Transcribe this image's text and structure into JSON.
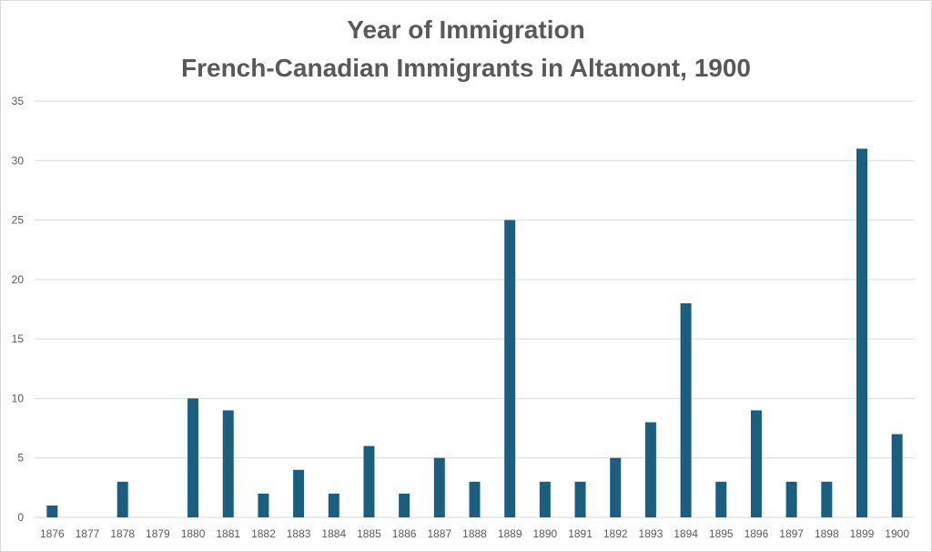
{
  "chart_data": {
    "type": "bar",
    "title": "Year of Immigration",
    "subtitle": "French-Canadian Immigrants in Altamont, 1900",
    "xlabel": "",
    "ylabel": "",
    "categories": [
      "1876",
      "1877",
      "1878",
      "1879",
      "1880",
      "1881",
      "1882",
      "1883",
      "1884",
      "1885",
      "1886",
      "1887",
      "1888",
      "1889",
      "1890",
      "1891",
      "1892",
      "1893",
      "1894",
      "1895",
      "1896",
      "1897",
      "1898",
      "1899",
      "1900"
    ],
    "values": [
      1,
      0,
      3,
      0,
      10,
      9,
      2,
      4,
      2,
      6,
      2,
      5,
      3,
      25,
      3,
      3,
      5,
      8,
      18,
      3,
      9,
      3,
      3,
      31,
      7
    ],
    "ylim": [
      0,
      35
    ],
    "yticks": [
      0,
      5,
      10,
      15,
      20,
      25,
      30,
      35
    ],
    "grid": true,
    "legend": "none",
    "colors": {
      "bar": "#1b5f80",
      "grid": "#d9d9d9",
      "text": "#595959"
    }
  }
}
